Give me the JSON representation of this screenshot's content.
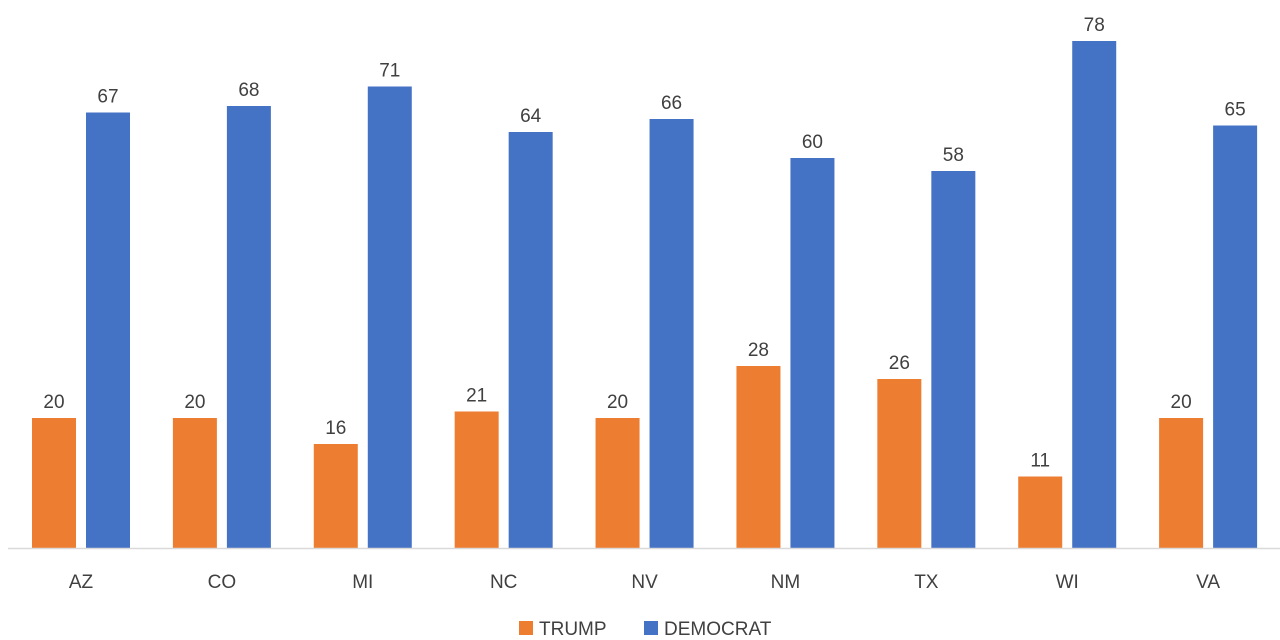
{
  "chart_data": {
    "type": "bar",
    "categories": [
      "AZ",
      "CO",
      "MI",
      "NC",
      "NV",
      "NM",
      "TX",
      "WI",
      "VA"
    ],
    "series": [
      {
        "name": "TRUMP",
        "color": "#ED7D31",
        "values": [
          20,
          20,
          16,
          21,
          20,
          28,
          26,
          11,
          20
        ]
      },
      {
        "name": "DEMOCRAT",
        "color": "#4472C4",
        "values": [
          67,
          68,
          71,
          64,
          66,
          60,
          58,
          78,
          65
        ]
      }
    ],
    "ylim": [
      0,
      82
    ],
    "grid": false,
    "legend_position": "bottom",
    "data_labels": true,
    "axis_color": "#D9D9D9"
  }
}
